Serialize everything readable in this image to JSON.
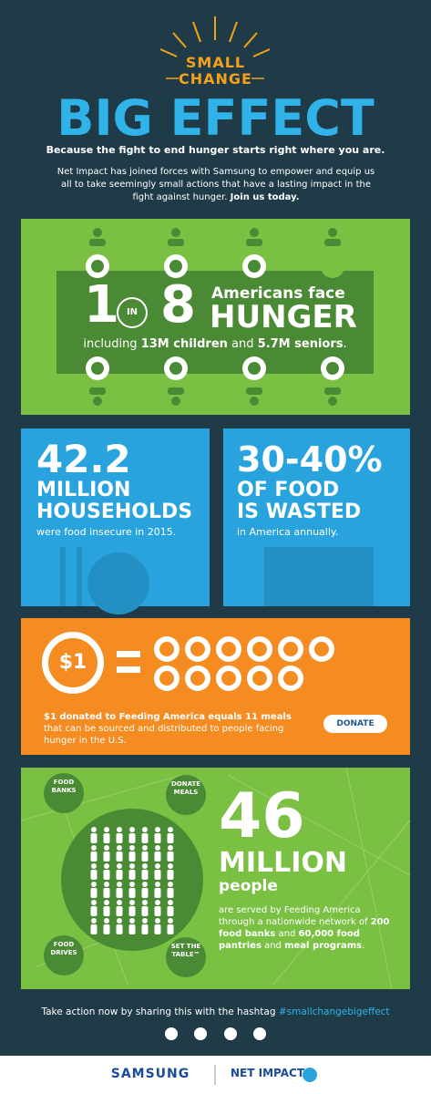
{
  "header": {
    "small_change": [
      "SMALL",
      "CHANGE"
    ],
    "title": "BIG EFFECT",
    "tagline": "Because the fight to end hunger starts right where you are.",
    "intro": [
      "Net Impact has joined forces with Samsung to empower and equip us all to take seemingly small actions that have a lasting impact in the fight against hunger. ",
      "Join us today."
    ]
  },
  "hunger": {
    "one": "1",
    "in": "IN",
    "eight": "8",
    "line1": "Americans face",
    "line2": "HUNGER",
    "sub": [
      "including ",
      "13M children",
      " and ",
      "5.7M seniors",
      "."
    ]
  },
  "households": {
    "number": "42.2",
    "line1": "MILLION",
    "line2": "HOUSEHOLDS",
    "sub": "were food insecure in 2015."
  },
  "waste": {
    "number": "30-40%",
    "line1": "OF FOOD",
    "line2": "IS WASTED",
    "sub": "in America annually."
  },
  "donation": {
    "amount": "$1",
    "equals": "=",
    "text": [
      "$1 donated to Feeding America equals 11 meals",
      "that can be sourced and distributed to people facing hunger in the U.S."
    ],
    "button": "DONATE"
  },
  "network": {
    "nodes": [
      [
        "FOOD",
        "BANKS"
      ],
      [
        "DONATE",
        "MEALS"
      ],
      [
        "FOOD",
        "DRIVES"
      ],
      [
        "SET THE",
        "TABLE™"
      ]
    ],
    "number": "46",
    "line1": "MILLION",
    "line2": "people",
    "text": [
      "are served by Feeding America through a nationwide network of ",
      "200 food banks",
      " and ",
      "60,000 food pantries",
      " and ",
      "meal programs",
      "."
    ]
  },
  "footer": {
    "share": [
      "Take action now by sharing this with the hashtag ",
      "#smallchangebigeffect"
    ],
    "logos": [
      "SAMSUNG",
      "NET IMPACT"
    ]
  }
}
